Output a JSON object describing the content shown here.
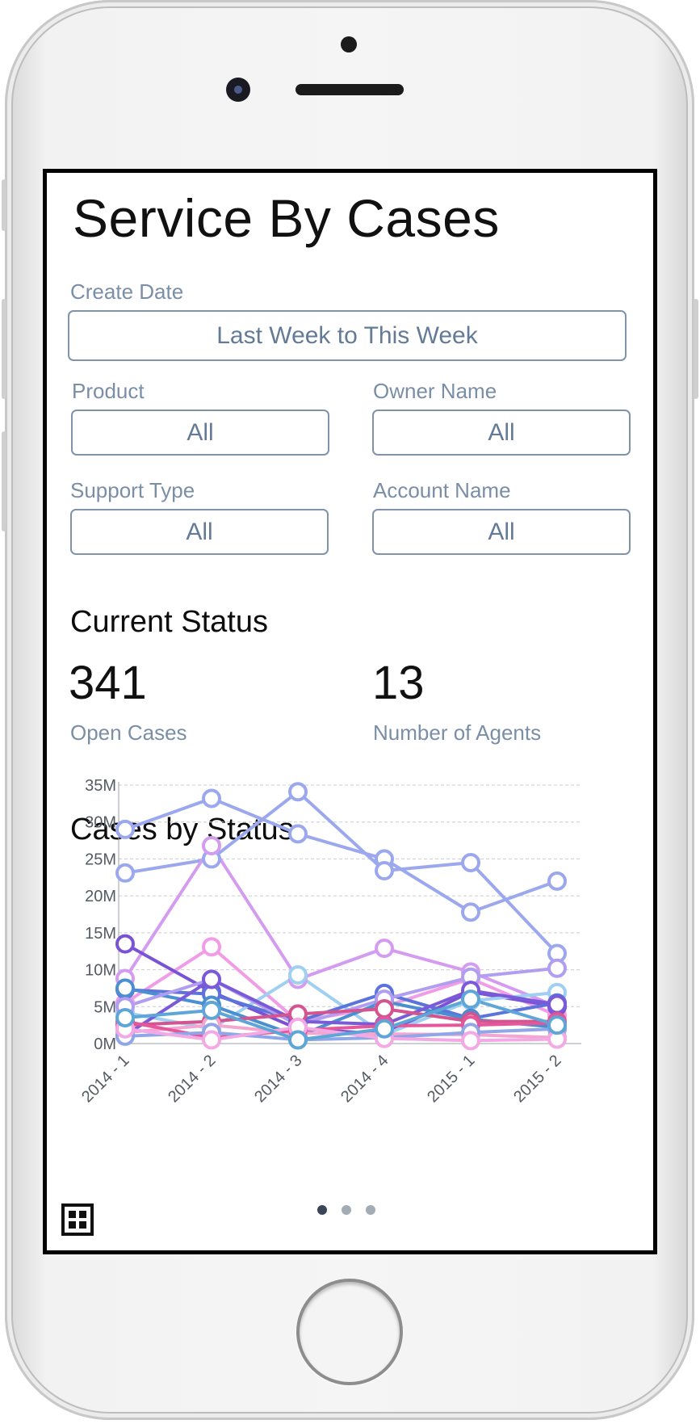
{
  "page": {
    "title": "Service By Cases"
  },
  "filters": {
    "create_date": {
      "label": "Create Date",
      "value": "Last Week to This Week"
    },
    "product": {
      "label": "Product",
      "value": "All"
    },
    "owner_name": {
      "label": "Owner Name",
      "value": "All"
    },
    "support_type": {
      "label": "Support Type",
      "value": "All"
    },
    "account_name": {
      "label": "Account Name",
      "value": "All"
    }
  },
  "current_status": {
    "title": "Current Status",
    "open_cases": {
      "value": "341",
      "label": "Open Cases"
    },
    "agents": {
      "value": "13",
      "label": "Number of Agents"
    }
  },
  "pagination": {
    "total": 3,
    "active_index": 0
  },
  "icons": {
    "grid": "grid-icon"
  },
  "colors": {
    "label": "#7a8ea6",
    "border": "#7f93ab",
    "title": "#111111"
  },
  "chart_data": {
    "type": "line",
    "title": "Cases by Status",
    "xlabel": "",
    "ylabel": "",
    "categories": [
      "2014 - 1",
      "2014 - 2",
      "2014 - 3",
      "2014 - 4",
      "2015 - 1",
      "2015 - 2"
    ],
    "y_ticks": [
      "0M",
      "5M",
      "10M",
      "15M",
      "20M",
      "25M",
      "30M",
      "35M"
    ],
    "ylim": [
      0,
      35000000
    ],
    "grid": true,
    "series": [
      {
        "color": "#9ca8ee",
        "values": [
          29000000,
          33200000,
          28400000,
          25000000,
          17800000,
          22000000
        ]
      },
      {
        "color": "#9ca8ee",
        "values": [
          23100000,
          25000000,
          34100000,
          23400000,
          24500000,
          12200000
        ]
      },
      {
        "color": "#d49cf0",
        "values": [
          8800000,
          26800000,
          8700000,
          12900000,
          9700000,
          5000000
        ]
      },
      {
        "color": "#f09ce6",
        "values": [
          5500000,
          13100000,
          3000000,
          5000000,
          8800000,
          3800000
        ]
      },
      {
        "color": "#7a52d6",
        "values": [
          13500000,
          7000000,
          2000000,
          1300000,
          7000000,
          5000000
        ]
      },
      {
        "color": "#9fd0f2",
        "values": [
          4200000,
          2000000,
          9300000,
          1200000,
          5800000,
          6900000
        ]
      },
      {
        "color": "#5b73da",
        "values": [
          7300000,
          6700000,
          3000000,
          6800000,
          3400000,
          5500000
        ]
      },
      {
        "color": "#4a8fd0",
        "values": [
          7500000,
          5200000,
          1000000,
          5700000,
          3300000,
          2200000
        ]
      },
      {
        "color": "#b19ef0",
        "values": [
          5000000,
          8700000,
          2500000,
          6000000,
          9000000,
          10200000
        ]
      },
      {
        "color": "#7a5ad8",
        "values": [
          1100000,
          8700000,
          3000000,
          2600000,
          7200000,
          5300000
        ]
      },
      {
        "color": "#d3548f",
        "values": [
          2500000,
          3000000,
          4000000,
          4700000,
          3000000,
          3000000
        ]
      },
      {
        "color": "#f2a6d0",
        "values": [
          1500000,
          2500000,
          1400000,
          1300000,
          1200000,
          800000
        ]
      },
      {
        "color": "#e5569b",
        "values": [
          3000000,
          800000,
          1800000,
          2400000,
          2500000,
          2800000
        ]
      },
      {
        "color": "#8fa6e8",
        "values": [
          1000000,
          1500000,
          500000,
          800000,
          1500000,
          2000000
        ]
      },
      {
        "color": "#f3a9e4",
        "values": [
          2000000,
          500000,
          2200000,
          700000,
          400000,
          600000
        ]
      },
      {
        "color": "#5fa6d8",
        "values": [
          3500000,
          4500000,
          500000,
          2000000,
          6000000,
          2500000
        ]
      }
    ]
  }
}
